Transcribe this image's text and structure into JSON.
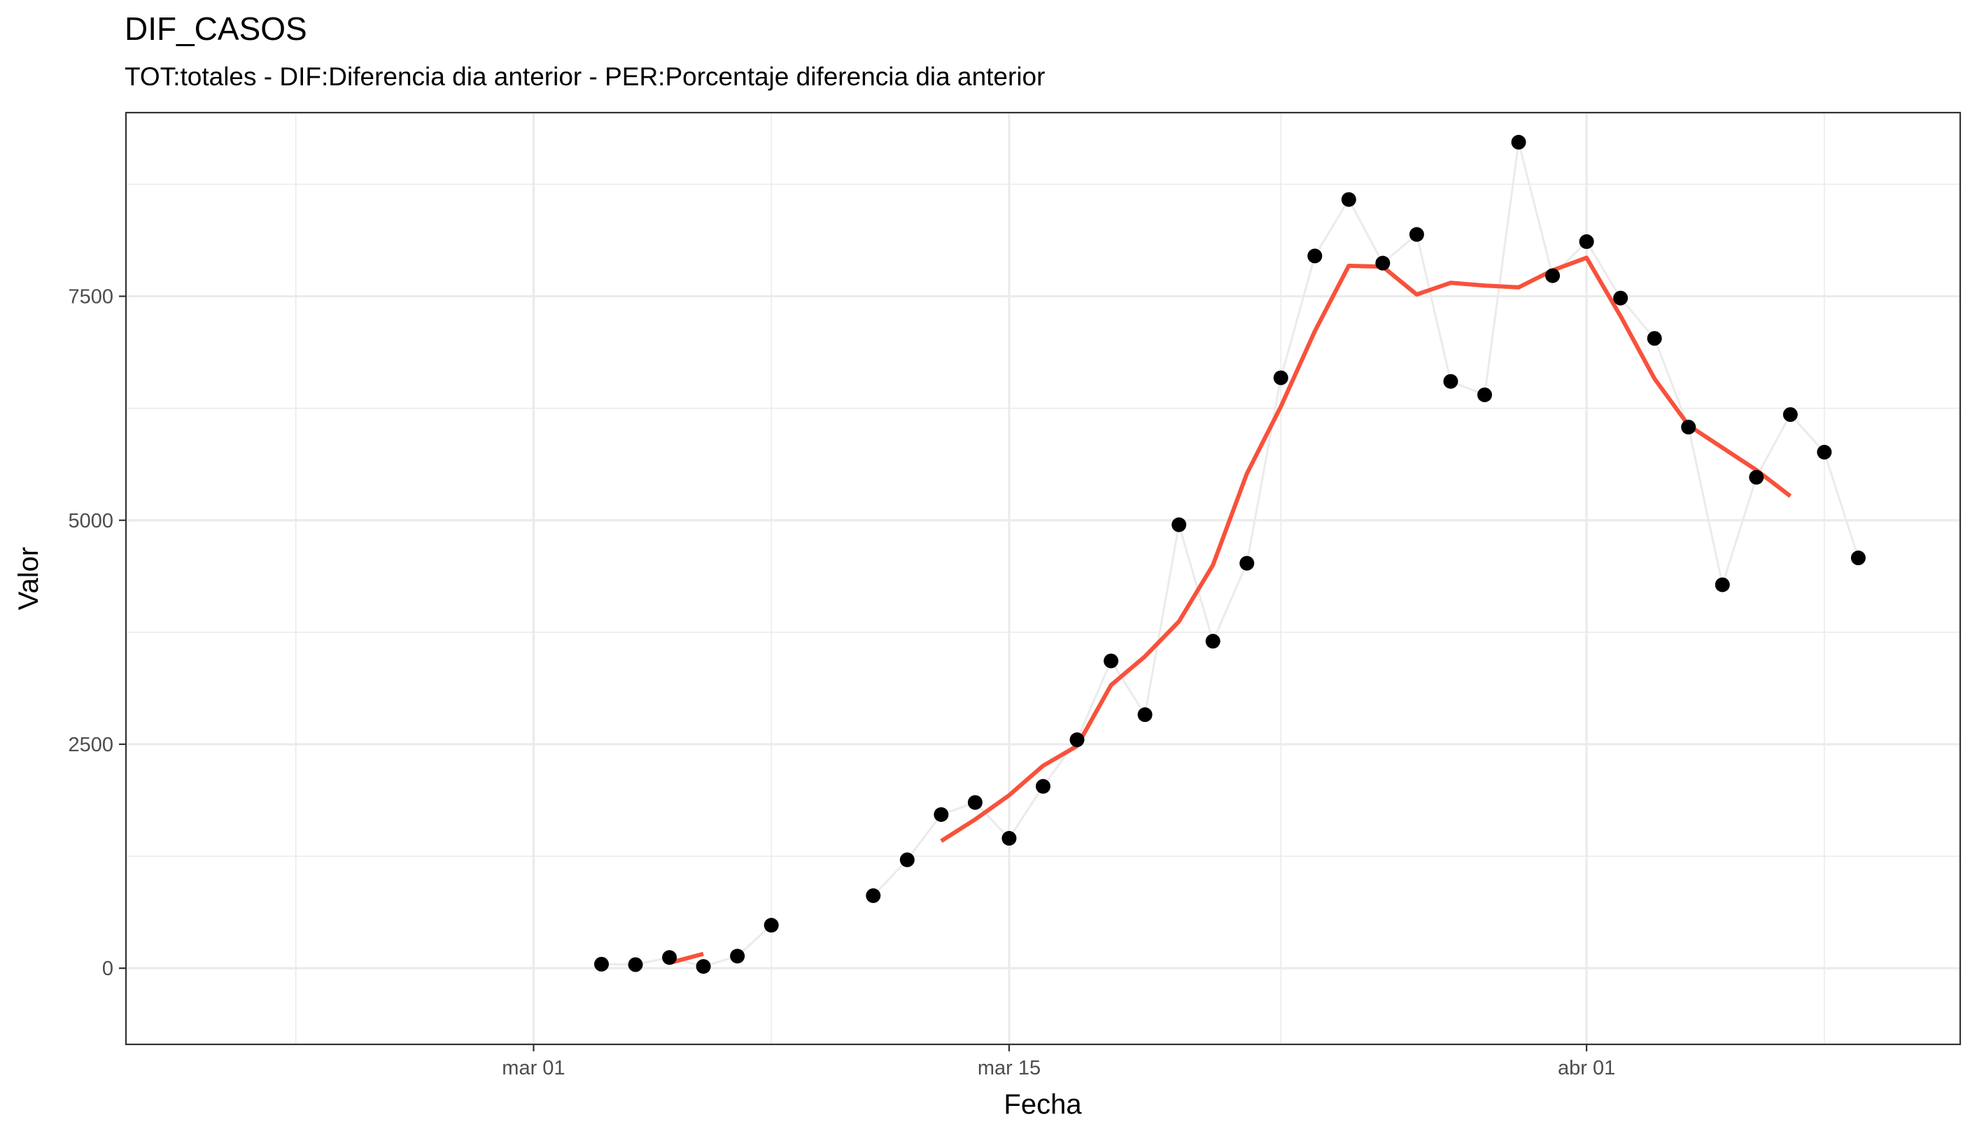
{
  "chart_data": {
    "type": "line",
    "title": "DIF_CASOS",
    "subtitle": "TOT:totales - DIF:Diferencia dia anterior - PER:Porcentaje diferencia dia anterior",
    "xlabel": "Fecha",
    "ylabel": "Valor",
    "x_axis": {
      "type": "date",
      "range": [
        "2020-02-18",
        "2020-04-12"
      ],
      "ticks": [
        {
          "date": "2020-03-01",
          "label": "mar 01"
        },
        {
          "date": "2020-03-15",
          "label": "mar 15"
        },
        {
          "date": "2020-04-01",
          "label": "abr 01"
        }
      ],
      "minor_gridlines": [
        "2020-02-23",
        "2020-03-08",
        "2020-03-23",
        "2020-04-08"
      ]
    },
    "y_axis": {
      "range": [
        -850,
        9550
      ],
      "ticks": [
        0,
        2500,
        5000,
        7500
      ],
      "minor_gridlines": [
        1250,
        3750,
        6250,
        8750
      ]
    },
    "grid": true,
    "colors": {
      "points": "#000000",
      "connecting_line": "#ebebeb",
      "moving_average": "#f8513b",
      "grid": "#ebebeb",
      "panel_border": "#333333"
    },
    "series": [
      {
        "kind": "points",
        "points": [
          {
            "x": "2020-03-03",
            "y": 45
          },
          {
            "x": "2020-03-04",
            "y": 40
          },
          {
            "x": "2020-03-05",
            "y": 120
          },
          {
            "x": "2020-03-06",
            "y": 20
          },
          {
            "x": "2020-03-07",
            "y": 135
          },
          {
            "x": "2020-03-08",
            "y": 480
          },
          {
            "x": "2020-03-11",
            "y": 810
          },
          {
            "x": "2020-03-12",
            "y": 1210
          },
          {
            "x": "2020-03-13",
            "y": 1715
          },
          {
            "x": "2020-03-14",
            "y": 1850
          },
          {
            "x": "2020-03-15",
            "y": 1450
          },
          {
            "x": "2020-03-16",
            "y": 2030
          },
          {
            "x": "2020-03-17",
            "y": 2550
          },
          {
            "x": "2020-03-18",
            "y": 3430
          },
          {
            "x": "2020-03-19",
            "y": 2830
          },
          {
            "x": "2020-03-20",
            "y": 4950
          },
          {
            "x": "2020-03-21",
            "y": 3650
          },
          {
            "x": "2020-03-22",
            "y": 4520
          },
          {
            "x": "2020-03-23",
            "y": 6590
          },
          {
            "x": "2020-03-24",
            "y": 7950
          },
          {
            "x": "2020-03-25",
            "y": 8580
          },
          {
            "x": "2020-03-26",
            "y": 7870
          },
          {
            "x": "2020-03-27",
            "y": 8190
          },
          {
            "x": "2020-03-28",
            "y": 6550
          },
          {
            "x": "2020-03-29",
            "y": 6400
          },
          {
            "x": "2020-03-30",
            "y": 9220
          },
          {
            "x": "2020-03-31",
            "y": 7730
          },
          {
            "x": "2020-04-01",
            "y": 8110
          },
          {
            "x": "2020-04-02",
            "y": 7480
          },
          {
            "x": "2020-04-03",
            "y": 7030
          },
          {
            "x": "2020-04-04",
            "y": 6040
          },
          {
            "x": "2020-04-05",
            "y": 4280
          },
          {
            "x": "2020-04-06",
            "y": 5480
          },
          {
            "x": "2020-04-07",
            "y": 6180
          },
          {
            "x": "2020-04-08",
            "y": 5760
          },
          {
            "x": "2020-04-09",
            "y": 4580
          }
        ]
      },
      {
        "kind": "moving_average",
        "segments": [
          [
            {
              "x": "2020-03-05",
              "y": 60
            },
            {
              "x": "2020-03-06",
              "y": 160
            }
          ],
          [
            {
              "x": "2020-03-13",
              "y": 1420
            },
            {
              "x": "2020-03-14",
              "y": 1660
            },
            {
              "x": "2020-03-15",
              "y": 1930
            },
            {
              "x": "2020-03-16",
              "y": 2260
            },
            {
              "x": "2020-03-17",
              "y": 2480
            },
            {
              "x": "2020-03-18",
              "y": 3160
            },
            {
              "x": "2020-03-19",
              "y": 3480
            },
            {
              "x": "2020-03-20",
              "y": 3870
            },
            {
              "x": "2020-03-21",
              "y": 4500
            },
            {
              "x": "2020-03-22",
              "y": 5520
            },
            {
              "x": "2020-03-23",
              "y": 6270
            },
            {
              "x": "2020-03-24",
              "y": 7110
            },
            {
              "x": "2020-03-25",
              "y": 7840
            },
            {
              "x": "2020-03-26",
              "y": 7830
            },
            {
              "x": "2020-03-27",
              "y": 7520
            },
            {
              "x": "2020-03-28",
              "y": 7650
            },
            {
              "x": "2020-03-29",
              "y": 7620
            },
            {
              "x": "2020-03-30",
              "y": 7600
            },
            {
              "x": "2020-03-31",
              "y": 7790
            },
            {
              "x": "2020-04-01",
              "y": 7930
            },
            {
              "x": "2020-04-02",
              "y": 7280
            },
            {
              "x": "2020-04-03",
              "y": 6580
            },
            {
              "x": "2020-04-04",
              "y": 6060
            },
            {
              "x": "2020-04-05",
              "y": 5810
            },
            {
              "x": "2020-04-06",
              "y": 5560
            },
            {
              "x": "2020-04-07",
              "y": 5270
            }
          ]
        ]
      }
    ]
  }
}
